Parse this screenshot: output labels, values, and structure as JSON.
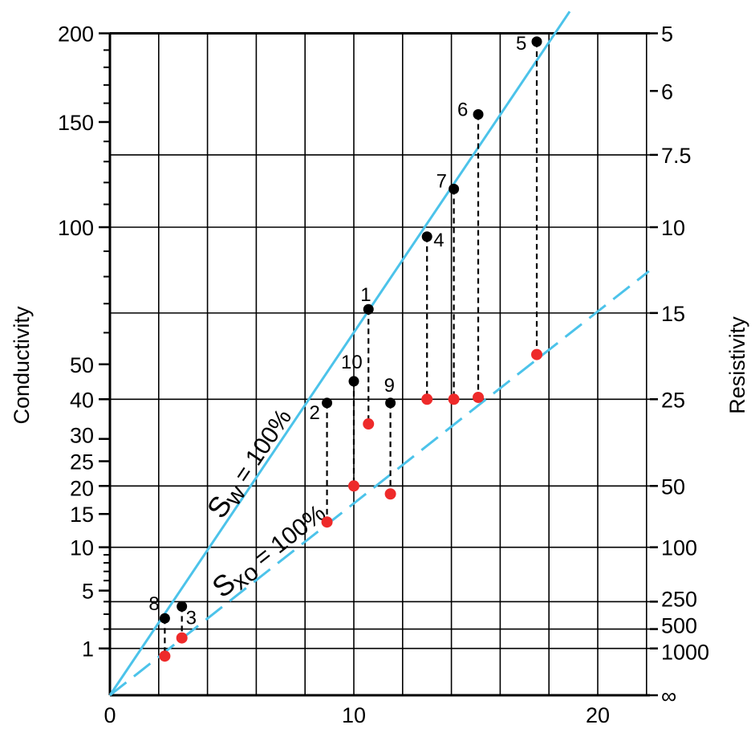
{
  "chart_data": {
    "type": "scatter",
    "xlabel": "",
    "ylabel": "Conductivity",
    "y2label": "Resistivity",
    "y_scale": "square-root",
    "x_range": [
      0,
      22.1
    ],
    "y_range": [
      0,
      200
    ],
    "grid": true,
    "x_ticks": [
      0,
      10,
      20
    ],
    "x_gridlines": [
      0,
      2,
      4,
      6,
      8,
      10,
      12,
      14,
      16,
      18,
      20,
      22
    ],
    "y_ticks": [
      200,
      150,
      100,
      50,
      40,
      30,
      25,
      20,
      15,
      10,
      5,
      1
    ],
    "y_gridlines_conductivity": [
      200,
      133.3,
      100,
      66.7,
      40,
      20,
      10,
      4,
      2,
      1
    ],
    "y2_ticks": [
      "5",
      "6",
      "7.5",
      "10",
      "15",
      "25",
      "50",
      "100",
      "250",
      "500",
      "1000",
      "∞"
    ],
    "y2_tick_conductivity": [
      200,
      166.7,
      133.3,
      100,
      66.7,
      40,
      20,
      10,
      4,
      2,
      1,
      0
    ],
    "lines": [
      {
        "label_main": "S",
        "label_sub": "w",
        "label_rest": " = 100%",
        "style": "solid",
        "color": "#4cc3ea",
        "slope_sqrt_per_x": 0.775
      },
      {
        "label_main": "S",
        "label_sub": "xo",
        "label_rest": " = 100%",
        "style": "dashed",
        "color": "#4cc3ea",
        "slope_sqrt_per_x": 0.41
      }
    ],
    "series": [
      {
        "color": "#000000",
        "points": [
          {
            "label": "1",
            "x": 10.6,
            "y": 68
          },
          {
            "label": "2",
            "x": 8.9,
            "y": 39
          },
          {
            "label": "3",
            "x": 2.95,
            "y": 3.6
          },
          {
            "label": "4",
            "x": 13.0,
            "y": 96
          },
          {
            "label": "5",
            "x": 17.5,
            "y": 195
          },
          {
            "label": "6",
            "x": 15.1,
            "y": 154
          },
          {
            "label": "7",
            "x": 14.1,
            "y": 117
          },
          {
            "label": "8",
            "x": 2.25,
            "y": 2.7
          },
          {
            "label": "9",
            "x": 11.5,
            "y": 39
          },
          {
            "label": "10",
            "x": 10.0,
            "y": 45
          }
        ]
      },
      {
        "color": "#ee2a2a",
        "points": [
          {
            "label": "1",
            "x": 10.6,
            "y": 33.6
          },
          {
            "label": "2",
            "x": 8.9,
            "y": 13.7
          },
          {
            "label": "3",
            "x": 2.95,
            "y": 1.5
          },
          {
            "label": "4",
            "x": 13.0,
            "y": 40
          },
          {
            "label": "5",
            "x": 17.5,
            "y": 53
          },
          {
            "label": "6",
            "x": 15.1,
            "y": 40.5
          },
          {
            "label": "7",
            "x": 14.1,
            "y": 40
          },
          {
            "label": "8",
            "x": 2.25,
            "y": 0.7
          },
          {
            "label": "9",
            "x": 11.5,
            "y": 18.5
          },
          {
            "label": "10",
            "x": 10.0,
            "y": 20
          }
        ]
      }
    ]
  }
}
